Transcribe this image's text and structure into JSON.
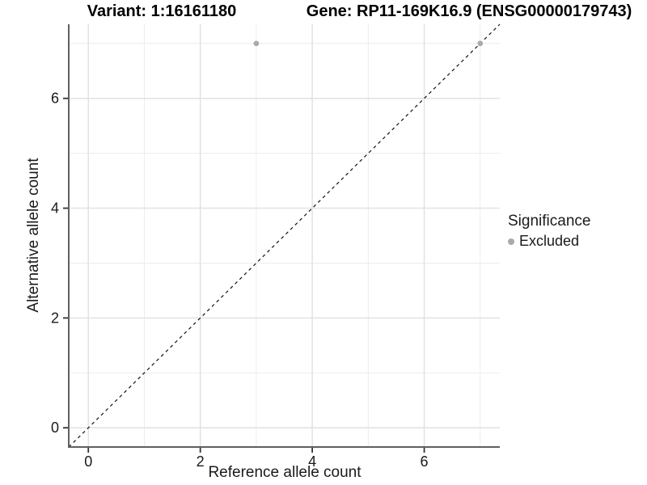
{
  "titles": {
    "left": "Variant: 1:16161180",
    "right": "Gene: RP11-169K16.9 (ENSG00000179743)"
  },
  "chart_data": {
    "type": "scatter",
    "xlabel": "Reference allele count",
    "ylabel": "Alternative allele count",
    "xlim": [
      -0.35,
      7.35
    ],
    "ylim": [
      -0.35,
      7.35
    ],
    "x_ticks": [
      0,
      2,
      4,
      6
    ],
    "y_ticks": [
      0,
      2,
      4,
      6
    ],
    "grid_major": [
      0,
      2,
      4,
      6
    ],
    "grid_minor": [
      1,
      3,
      5,
      7
    ],
    "identity_line": {
      "equation": "y = x",
      "style": "dashed"
    },
    "series": [
      {
        "name": "Excluded",
        "color": "#aaaaaa",
        "points": [
          [
            3,
            7
          ],
          [
            7,
            7
          ]
        ]
      }
    ],
    "legend": {
      "title": "Significance",
      "position": "right",
      "items": [
        {
          "label": "Excluded",
          "color": "#aaaaaa"
        }
      ]
    },
    "colors": {
      "grid_major": "#e2e2e2",
      "grid_minor": "#ececec",
      "axis_line": "#606060",
      "tick_mark": "#333333",
      "tick_label": "#1a1a1a",
      "identity": "#111111"
    }
  }
}
